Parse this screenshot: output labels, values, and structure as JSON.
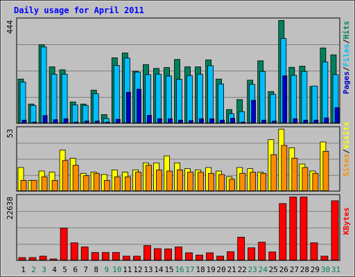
{
  "chart_data": [
    {
      "type": "bar",
      "title": "Daily usage for April 2011",
      "categories": [
        "1",
        "2",
        "3",
        "4",
        "5",
        "6",
        "7",
        "8",
        "9",
        "10",
        "11",
        "12",
        "13",
        "14",
        "15",
        "16",
        "17",
        "18",
        "19",
        "20",
        "21",
        "22",
        "23",
        "24",
        "25",
        "26",
        "27",
        "28",
        "29",
        "30",
        "31"
      ],
      "weekend_days": [
        "2",
        "3",
        "9",
        "10",
        "16",
        "17",
        "23",
        "24",
        "30",
        "31"
      ],
      "max_label": "444",
      "ylim": [
        0,
        444
      ],
      "legend": [
        "Pages",
        "Files",
        "Hits"
      ],
      "series": [
        {
          "name": "Hits",
          "color": "#00805c",
          "values": [
            190,
            82,
            339,
            243,
            230,
            91,
            82,
            142,
            36,
            282,
            303,
            224,
            253,
            236,
            240,
            275,
            243,
            243,
            273,
            190,
            58,
            101,
            185,
            269,
            136,
            444,
            241,
            246,
            158,
            325,
            295
          ]
        },
        {
          "name": "Files",
          "color": "#00bfff",
          "values": [
            177,
            76,
            329,
            211,
            211,
            78,
            76,
            127,
            19,
            249,
            281,
            220,
            209,
            211,
            203,
            189,
            205,
            211,
            248,
            169,
            40,
            49,
            167,
            223,
            124,
            366,
            206,
            223,
            160,
            264,
            209
          ]
        },
        {
          "name": "Pages",
          "color": "#0000cc",
          "values": [
            12,
            4,
            32,
            14,
            18,
            4,
            8,
            8,
            4,
            16,
            133,
            146,
            33,
            18,
            18,
            12,
            10,
            18,
            18,
            12,
            20,
            4,
            98,
            12,
            8,
            204,
            18,
            12,
            12,
            22,
            66
          ]
        }
      ]
    },
    {
      "type": "bar",
      "max_label": "53",
      "ylim": [
        0,
        53
      ],
      "legend": [
        "Sites",
        "Visits"
      ],
      "series": [
        {
          "name": "Visits",
          "color": "#ffff00",
          "values": [
            20,
            9,
            17,
            16,
            35,
            28,
            15,
            16,
            14,
            18,
            16,
            18,
            24,
            24,
            30,
            24,
            19,
            18,
            20,
            17,
            12,
            20,
            19,
            16,
            44,
            53,
            37,
            23,
            17,
            42,
            0
          ]
        },
        {
          "name": "Sites",
          "color": "#ff8c00",
          "values": [
            9,
            9,
            12,
            9,
            26,
            22,
            13,
            15,
            9,
            12,
            12,
            16,
            22,
            18,
            17,
            18,
            16,
            16,
            15,
            14,
            10,
            15,
            16,
            15,
            31,
            39,
            28,
            20,
            15,
            34,
            0
          ]
        }
      ]
    },
    {
      "type": "bar",
      "max_label": "22638",
      "ylim": [
        0,
        22638
      ],
      "legend": [
        "KBytes"
      ],
      "series": [
        {
          "name": "KBytes",
          "color": "#ff0000",
          "values": [
            900,
            900,
            1400,
            400,
            11500,
            6200,
            4700,
            2700,
            2700,
            2700,
            1400,
            1400,
            5200,
            4100,
            4000,
            4700,
            2600,
            1800,
            2600,
            1400,
            3000,
            8200,
            4400,
            6400,
            2900,
            20300,
            22638,
            22638,
            6200,
            1400,
            21300
          ]
        }
      ]
    }
  ]
}
